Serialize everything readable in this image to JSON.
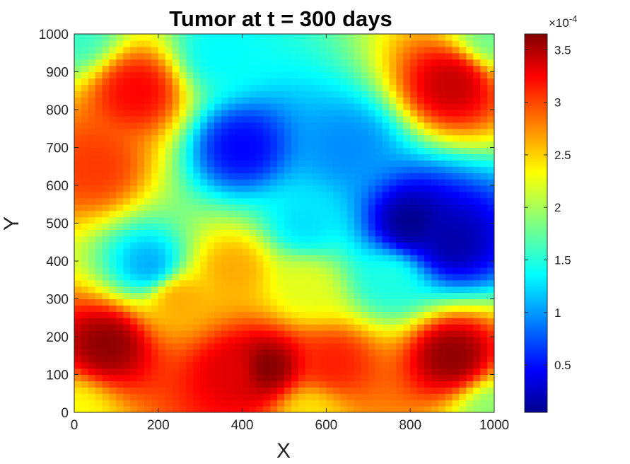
{
  "chart_data": {
    "type": "heatmap",
    "title": "Tumor at t = 300 days",
    "xlabel": "X",
    "ylabel": "Y",
    "xlim": [
      0,
      1000
    ],
    "ylim": [
      0,
      1000
    ],
    "x_ticks": [
      "0",
      "200",
      "400",
      "600",
      "800",
      "1000"
    ],
    "y_ticks": [
      "0",
      "100",
      "200",
      "300",
      "400",
      "500",
      "600",
      "700",
      "800",
      "900",
      "1000"
    ],
    "colormap": "jet",
    "colorbar": {
      "multiplier_prefix": "×10",
      "multiplier_exponent": "-4",
      "range": [
        0.05,
        3.65
      ],
      "ticks": [
        "0.5",
        "1",
        "1.5",
        "2",
        "2.5",
        "3",
        "3.5"
      ],
      "tick_values": [
        0.5,
        1,
        1.5,
        2,
        2.5,
        3,
        3.5
      ]
    },
    "regions": [
      {
        "x": 0,
        "y": 1000,
        "value": 1.6
      },
      {
        "x": 150,
        "y": 850,
        "value": 3.2
      },
      {
        "x": 50,
        "y": 650,
        "value": 3.0
      },
      {
        "x": 350,
        "y": 950,
        "value": 1.4
      },
      {
        "x": 400,
        "y": 700,
        "value": 0.5
      },
      {
        "x": 650,
        "y": 700,
        "value": 1.0
      },
      {
        "x": 900,
        "y": 870,
        "value": 3.4
      },
      {
        "x": 1000,
        "y": 1000,
        "value": 1.8
      },
      {
        "x": 800,
        "y": 500,
        "value": 0.1
      },
      {
        "x": 900,
        "y": 450,
        "value": 0.2
      },
      {
        "x": 550,
        "y": 500,
        "value": 1.3
      },
      {
        "x": 180,
        "y": 390,
        "value": 1.1
      },
      {
        "x": 380,
        "y": 380,
        "value": 2.6
      },
      {
        "x": 550,
        "y": 330,
        "value": 2.2
      },
      {
        "x": 750,
        "y": 350,
        "value": 1.5
      },
      {
        "x": 80,
        "y": 180,
        "value": 3.6
      },
      {
        "x": 380,
        "y": 110,
        "value": 3.3
      },
      {
        "x": 460,
        "y": 120,
        "value": 3.65
      },
      {
        "x": 620,
        "y": 130,
        "value": 3.1
      },
      {
        "x": 900,
        "y": 150,
        "value": 3.6
      },
      {
        "x": 0,
        "y": 0,
        "value": 2.3
      },
      {
        "x": 560,
        "y": 0,
        "value": 2.4
      },
      {
        "x": 1000,
        "y": 0,
        "value": 1.9
      },
      {
        "x": 250,
        "y": 300,
        "value": 2.6
      }
    ]
  }
}
